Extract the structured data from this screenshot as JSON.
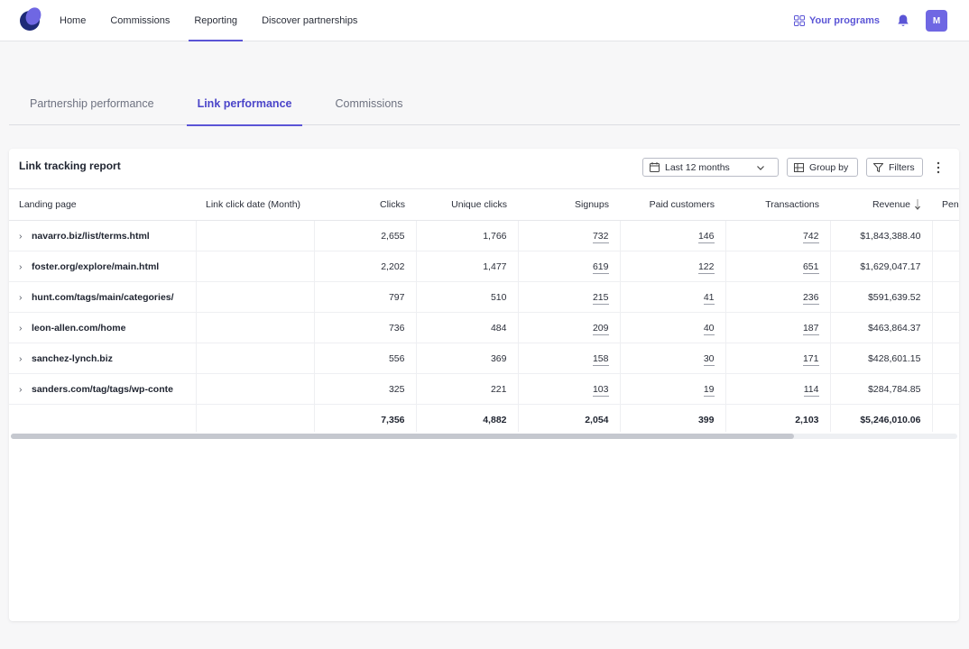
{
  "nav": {
    "items": [
      {
        "label": "Home"
      },
      {
        "label": "Commissions"
      },
      {
        "label": "Reporting",
        "active": true
      },
      {
        "label": "Discover partnerships"
      }
    ],
    "programs_label": "Your programs",
    "avatar_initial": "M",
    "accent_color": "#5b55d6"
  },
  "tabs": [
    {
      "label": "Partnership performance"
    },
    {
      "label": "Link performance",
      "active": true
    },
    {
      "label": "Commissions"
    }
  ],
  "report": {
    "title": "Link tracking report",
    "date_range": "Last 12 months",
    "group_by_label": "Group by",
    "filters_label": "Filters",
    "columns": [
      "Landing page",
      "Link click date (Month)",
      "Clicks",
      "Unique clicks",
      "Signups",
      "Paid customers",
      "Transactions",
      "Revenue",
      "Pend"
    ],
    "rows": [
      {
        "landing_page": "navarro.biz/list/terms.html",
        "click_date": "",
        "clicks": "2,655",
        "unique_clicks": "1,766",
        "signups": "732",
        "paid_customers": "146",
        "transactions": "742",
        "revenue": "$1,843,388.40"
      },
      {
        "landing_page": "foster.org/explore/main.html",
        "click_date": "",
        "clicks": "2,202",
        "unique_clicks": "1,477",
        "signups": "619",
        "paid_customers": "122",
        "transactions": "651",
        "revenue": "$1,629,047.17"
      },
      {
        "landing_page": "hunt.com/tags/main/categories/",
        "click_date": "",
        "clicks": "797",
        "unique_clicks": "510",
        "signups": "215",
        "paid_customers": "41",
        "transactions": "236",
        "revenue": "$591,639.52"
      },
      {
        "landing_page": "leon-allen.com/home",
        "click_date": "",
        "clicks": "736",
        "unique_clicks": "484",
        "signups": "209",
        "paid_customers": "40",
        "transactions": "187",
        "revenue": "$463,864.37"
      },
      {
        "landing_page": "sanchez-lynch.biz",
        "click_date": "",
        "clicks": "556",
        "unique_clicks": "369",
        "signups": "158",
        "paid_customers": "30",
        "transactions": "171",
        "revenue": "$428,601.15"
      },
      {
        "landing_page": "sanders.com/tag/tags/wp-conte",
        "click_date": "",
        "clicks": "325",
        "unique_clicks": "221",
        "signups": "103",
        "paid_customers": "19",
        "transactions": "114",
        "revenue": "$284,784.85"
      }
    ],
    "totals": {
      "clicks": "7,356",
      "unique_clicks": "4,882",
      "signups": "2,054",
      "paid_customers": "399",
      "transactions": "2,103",
      "revenue": "$5,246,010.06"
    },
    "horizontal_scroll_position": 0
  }
}
